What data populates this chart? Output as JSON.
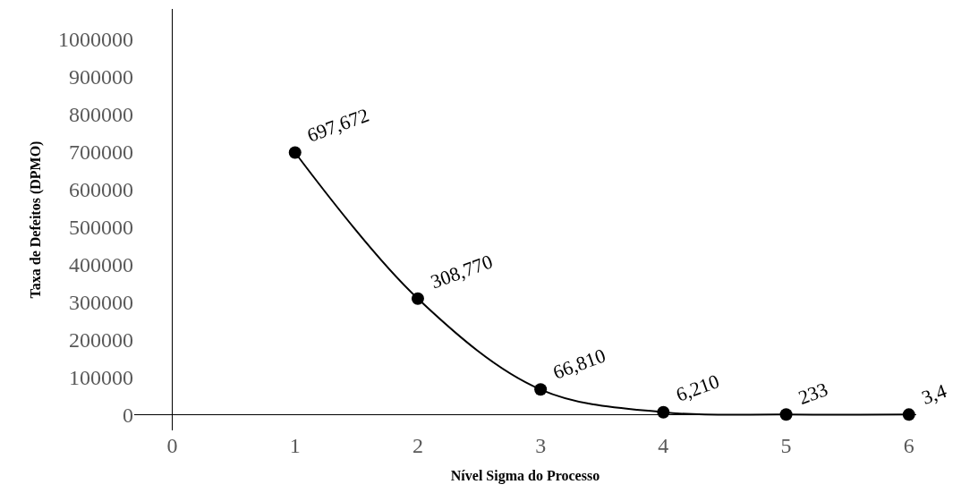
{
  "chart_data": {
    "type": "scatter",
    "xlabel": "Nível Sigma do Processo",
    "ylabel": "Taxa de Defeitos (DPMO)",
    "x": [
      1,
      2,
      3,
      4,
      5,
      6
    ],
    "series": [
      {
        "color": "#000000",
        "values": [
          697672,
          308770,
          66810,
          6210,
          233,
          3.4
        ],
        "value_labels": [
          "697,672",
          "308,770",
          "66,810",
          "6,210",
          "233",
          "3,4"
        ]
      }
    ],
    "line_style": "solid",
    "marker": "circle",
    "xlim": [
      -0.31,
      6.06
    ],
    "xticks": [
      0,
      1,
      2,
      3,
      4,
      5,
      6
    ],
    "ylim": [
      -42000,
      1080000
    ],
    "yticks": [
      0,
      100000,
      200000,
      300000,
      400000,
      500000,
      600000,
      700000,
      800000,
      900000,
      1000000
    ]
  }
}
